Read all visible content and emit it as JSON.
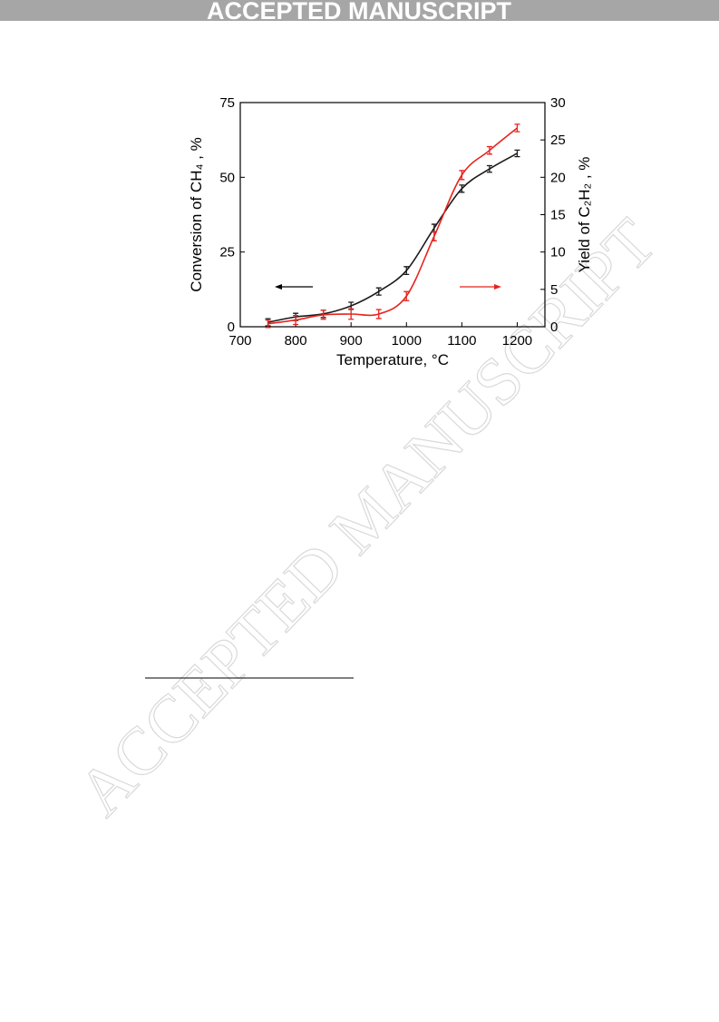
{
  "header": "ACCEPTED MANUSCRIPT",
  "watermark": "ACCEPTED MANUSCRIPT",
  "chart_data": {
    "type": "line",
    "x_label": "Temperature, °C",
    "y_label": "Conversion of CH₄ , %",
    "y2_label": "Yield of C₂H₂ , %",
    "x": [
      750,
      800,
      850,
      900,
      950,
      1000,
      1050,
      1100,
      1150,
      1200
    ],
    "xlim": [
      700,
      1250
    ],
    "xticks": [
      700,
      800,
      900,
      1000,
      1100,
      1200
    ],
    "ylim": [
      0,
      75
    ],
    "yticks": [
      0,
      25,
      50,
      75
    ],
    "y2lim": [
      0,
      30
    ],
    "y2ticks": [
      0,
      5,
      10,
      15,
      20,
      25,
      30
    ],
    "grid": false,
    "series": [
      {
        "color": "#1a1a1a",
        "values": [
          1.5,
          3.3,
          4.3,
          7,
          11.8,
          18.8,
          33,
          46.2,
          52.8,
          58
        ],
        "errors": [
          1.2,
          1.2,
          1.2,
          1.2,
          1.2,
          1.3,
          1.3,
          1.2,
          1.1,
          1.1
        ]
      },
      {
        "color": "#e8221c",
        "axis": "y2",
        "values": [
          0.4,
          0.9,
          1.6,
          1.7,
          1.7,
          4.1,
          12.1,
          20.3,
          23.6,
          26.6
        ],
        "errors": [
          0.5,
          0.6,
          0.6,
          0.7,
          0.6,
          0.6,
          0.6,
          0.6,
          0.5,
          0.5
        ]
      }
    ]
  }
}
